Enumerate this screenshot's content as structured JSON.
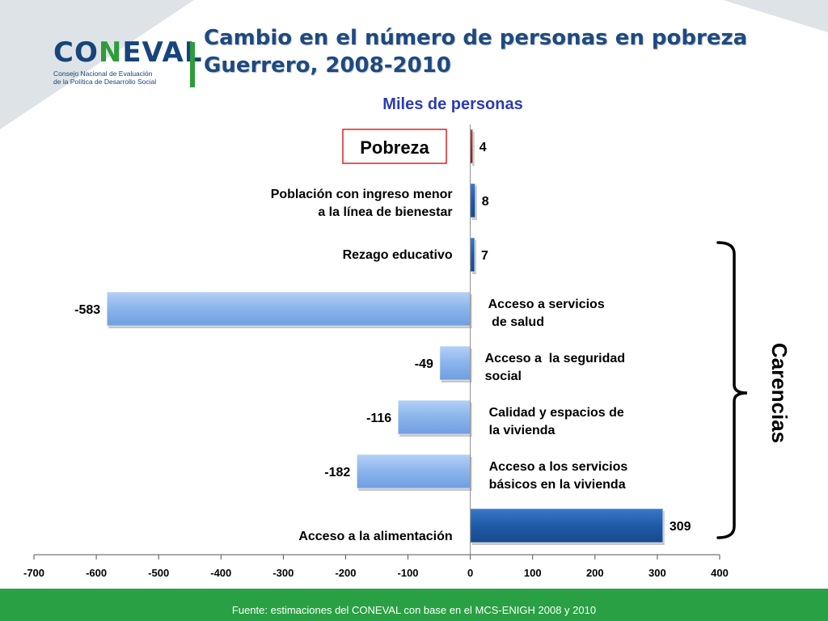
{
  "header": {
    "title_line1": "Cambio en el número de personas en pobreza",
    "title_line2": "Guerrero, 2008-2010",
    "subtitle": "Miles de personas"
  },
  "logo": {
    "word_pre": "CO",
    "word_n": "N",
    "word_post": "EVAL",
    "sub_line1": "Consejo Nacional de Evaluación",
    "sub_line2": "de la Política de Desarrollo Social"
  },
  "group_label": "Carencias",
  "footer": {
    "source": "Fuente: estimaciones del CONEVAL con base en el MCS-ENIGH 2008 y 2010"
  },
  "colors": {
    "pobreza": "#8c1a17",
    "dark_blue": "#1f5aa6",
    "light_blue": "#8ab4ec",
    "accent_green": "#2e9c3a",
    "highlight_box": "#e02020"
  },
  "chart_data": {
    "type": "bar",
    "orientation": "horizontal",
    "categories": [
      "Pobreza",
      "Población con ingreso menor a la línea de bienestar",
      "Rezago educativo",
      "Acceso a servicios de salud",
      "Acceso a  la seguridad social",
      "Calidad y espacios de la vivienda",
      "Acceso a los servicios básicos en la vivienda",
      "Acceso a la alimentación"
    ],
    "category_lines": [
      [
        "Pobreza"
      ],
      [
        "Población con ingreso menor",
        "a la línea de bienestar"
      ],
      [
        "Rezago educativo"
      ],
      [
        "Acceso a servicios",
        " de salud"
      ],
      [
        "Acceso a  la seguridad",
        "social"
      ],
      [
        "Calidad y espacios de",
        "la vivienda"
      ],
      [
        "Acceso a los servicios",
        "básicos en la vivienda"
      ],
      [
        "Acceso a la alimentación"
      ]
    ],
    "values": [
      4,
      8,
      7,
      -583,
      -49,
      -116,
      -182,
      309
    ],
    "value_labels": [
      "4",
      "8",
      "7",
      "-583",
      "-49",
      "-116",
      "-182",
      "309"
    ],
    "xlim": [
      -700,
      400
    ],
    "xticks": [
      -700,
      -600,
      -500,
      -400,
      -300,
      -200,
      -100,
      0,
      100,
      200,
      300,
      400
    ],
    "grid": false,
    "legend": "none"
  }
}
